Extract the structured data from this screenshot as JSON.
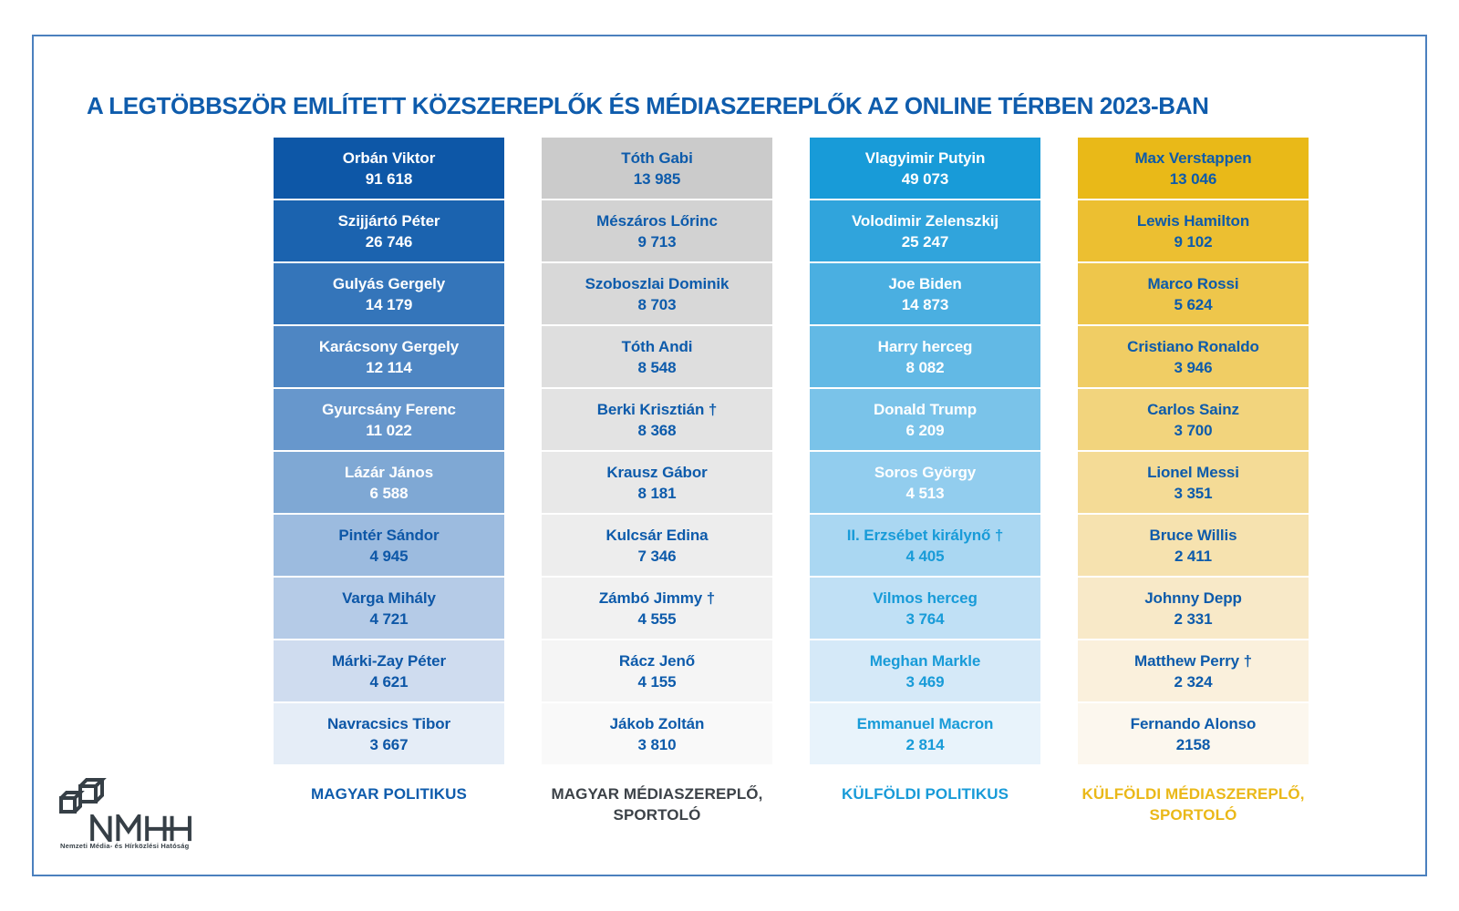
{
  "title": "A LEGTÖBBSZÖR EMLÍTETT KÖZSZEREPLŐK ÉS MÉDIASZEREPLŐK AZ ONLINE TÉRBEN 2023-BAN",
  "logo": {
    "wordmark": "NMHH",
    "caption": "Nemzeti Média- és Hírközlési Hatóság",
    "color": "#363F46"
  },
  "frame_border_color": "#4B80BE",
  "chart_data": {
    "type": "table",
    "title": "A legtöbbször említett közszereplők és médiaszereplők az online térben 2023-ban",
    "legend_position": "bottom",
    "columns": [
      {
        "id": "magyar-politikus",
        "label": "MAGYAR POLITIKUS",
        "label_color": "#0F5CAC",
        "text_light": "#FFFFFF",
        "text_dark": "#0D57A7",
        "light_text_rows": 6,
        "cell_colors": [
          "#0D57A7",
          "#1B63AF",
          "#3475BA",
          "#4E86C3",
          "#6797CC",
          "#7FA8D4",
          "#9CBBDF",
          "#B5CBE7",
          "#CFDCEF",
          "#E5EDF7"
        ],
        "entries": [
          {
            "name": "Orbán Viktor",
            "value": 91618,
            "display": "91 618"
          },
          {
            "name": "Szijjártó Péter",
            "value": 26746,
            "display": "26 746"
          },
          {
            "name": "Gulyás Gergely",
            "value": 14179,
            "display": "14 179"
          },
          {
            "name": "Karácsony Gergely",
            "value": 12114,
            "display": "12 114"
          },
          {
            "name": "Gyurcsány Ferenc",
            "value": 11022,
            "display": "11 022"
          },
          {
            "name": "Lázár János",
            "value": 6588,
            "display": "6 588"
          },
          {
            "name": "Pintér Sándor",
            "value": 4945,
            "display": "4 945"
          },
          {
            "name": "Varga Mihály",
            "value": 4721,
            "display": "4 721"
          },
          {
            "name": "Márki-Zay Péter",
            "value": 4621,
            "display": "4 621"
          },
          {
            "name": "Navracsics Tibor",
            "value": 3667,
            "display": "3 667"
          }
        ]
      },
      {
        "id": "magyar-mediaszereplo-sportolo",
        "label": "MAGYAR MÉDIASZEREPLŐ,\nSPORTOLÓ",
        "label_color": "#3C4248",
        "text_light": "#FFFFFF",
        "text_dark": "#0D5BAB",
        "light_text_rows": 0,
        "cell_colors": [
          "#CBCBCB",
          "#D2D2D2",
          "#D8D8D8",
          "#DEDEDE",
          "#E3E3E3",
          "#E8E8E8",
          "#EDEDED",
          "#F1F1F1",
          "#F5F5F5",
          "#F9F9F9"
        ],
        "entries": [
          {
            "name": "Tóth Gabi",
            "value": 13985,
            "display": "13 985"
          },
          {
            "name": "Mészáros Lőrinc",
            "value": 9713,
            "display": "9 713"
          },
          {
            "name": "Szoboszlai Dominik",
            "value": 8703,
            "display": "8 703"
          },
          {
            "name": "Tóth Andi",
            "value": 8548,
            "display": "8 548"
          },
          {
            "name": "Berki Krisztián †",
            "value": 8368,
            "display": "8 368"
          },
          {
            "name": "Krausz Gábor",
            "value": 8181,
            "display": "8 181"
          },
          {
            "name": "Kulcsár Edina",
            "value": 7346,
            "display": "7 346"
          },
          {
            "name": "Zámbó Jimmy †",
            "value": 4555,
            "display": "4 555"
          },
          {
            "name": "Rácz Jenő",
            "value": 4155,
            "display": "4 155"
          },
          {
            "name": "Jákob Zoltán",
            "value": 3810,
            "display": "3 810"
          }
        ]
      },
      {
        "id": "kulfoldi-politikus",
        "label": "KÜLFÖLDI POLITIKUS",
        "label_color": "#189BD8",
        "text_light": "#FFFFFF",
        "text_dark": "#189BD8",
        "light_text_rows": 6,
        "cell_colors": [
          "#189BD8",
          "#30A4DC",
          "#4AAFE1",
          "#62B9E5",
          "#7AC3E9",
          "#92CDEE",
          "#AAD7F2",
          "#C0E0F5",
          "#D5E9F8",
          "#E8F3FB"
        ],
        "entries": [
          {
            "name": "Vlagyimir Putyin",
            "value": 49073,
            "display": "49 073"
          },
          {
            "name": "Volodimir Zelenszkij",
            "value": 25247,
            "display": "25 247"
          },
          {
            "name": "Joe Biden",
            "value": 14873,
            "display": "14 873"
          },
          {
            "name": "Harry herceg",
            "value": 8082,
            "display": "8 082"
          },
          {
            "name": "Donald Trump",
            "value": 6209,
            "display": "6 209"
          },
          {
            "name": "Soros György",
            "value": 4513,
            "display": "4 513"
          },
          {
            "name": "II. Erzsébet királynő †",
            "value": 4405,
            "display": "4 405"
          },
          {
            "name": "Vilmos herceg",
            "value": 3764,
            "display": "3 764"
          },
          {
            "name": "Meghan Markle",
            "value": 3469,
            "display": "3 469"
          },
          {
            "name": "Emmanuel Macron",
            "value": 2814,
            "display": "2 814"
          }
        ]
      },
      {
        "id": "kulfoldi-mediaszereplo-sportolo",
        "label": "KÜLFÖLDI MÉDIASZEREPLŐ,\nSPORTOLÓ",
        "label_color": "#EAB818",
        "text_light": "#FFFFFF",
        "text_dark": "#0D5BAB",
        "light_text_rows": 0,
        "cell_colors": [
          "#E9B918",
          "#ECBF31",
          "#EEC64B",
          "#F0CD64",
          "#F2D47D",
          "#F4DB96",
          "#F6E2AF",
          "#F8E9C8",
          "#FAF0DC",
          "#FCF7EE"
        ],
        "entries": [
          {
            "name": "Max Verstappen",
            "value": 13046,
            "display": "13 046"
          },
          {
            "name": "Lewis Hamilton",
            "value": 9102,
            "display": "9 102"
          },
          {
            "name": "Marco Rossi",
            "value": 5624,
            "display": "5 624"
          },
          {
            "name": "Cristiano Ronaldo",
            "value": 3946,
            "display": "3 946"
          },
          {
            "name": "Carlos Sainz",
            "value": 3700,
            "display": "3 700"
          },
          {
            "name": "Lionel Messi",
            "value": 3351,
            "display": "3 351"
          },
          {
            "name": "Bruce Willis",
            "value": 2411,
            "display": "2 411"
          },
          {
            "name": "Johnny Depp",
            "value": 2331,
            "display": "2 331"
          },
          {
            "name": "Matthew Perry †",
            "value": 2324,
            "display": "2 324"
          },
          {
            "name": "Fernando Alonso",
            "value": 2158,
            "display": "2158"
          }
        ]
      }
    ]
  }
}
